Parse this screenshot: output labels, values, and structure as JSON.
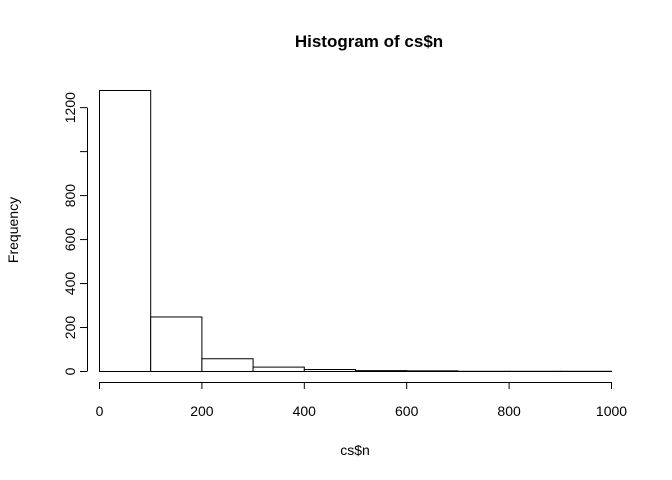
{
  "chart_data": {
    "type": "bar",
    "title": "Histogram of cs$n",
    "xlabel": "cs$n",
    "ylabel": "Frequency",
    "bins": [
      {
        "start": 0,
        "end": 100,
        "count": 1278
      },
      {
        "start": 100,
        "end": 200,
        "count": 248
      },
      {
        "start": 200,
        "end": 300,
        "count": 58
      },
      {
        "start": 300,
        "end": 400,
        "count": 20
      },
      {
        "start": 400,
        "end": 500,
        "count": 9
      },
      {
        "start": 500,
        "end": 600,
        "count": 4
      },
      {
        "start": 600,
        "end": 700,
        "count": 3
      },
      {
        "start": 700,
        "end": 800,
        "count": 1
      },
      {
        "start": 800,
        "end": 900,
        "count": 1
      },
      {
        "start": 900,
        "end": 1000,
        "count": 1
      }
    ],
    "xlim": [
      0,
      1000
    ],
    "ylim": [
      0,
      1278
    ],
    "xticks": [
      0,
      200,
      400,
      600,
      800,
      1000
    ],
    "yticks": [
      0,
      200,
      400,
      600,
      800,
      1000,
      1200
    ],
    "ytick_labels": [
      "0",
      "200",
      "400",
      "600",
      "800",
      "",
      "1200"
    ],
    "grid": false
  }
}
